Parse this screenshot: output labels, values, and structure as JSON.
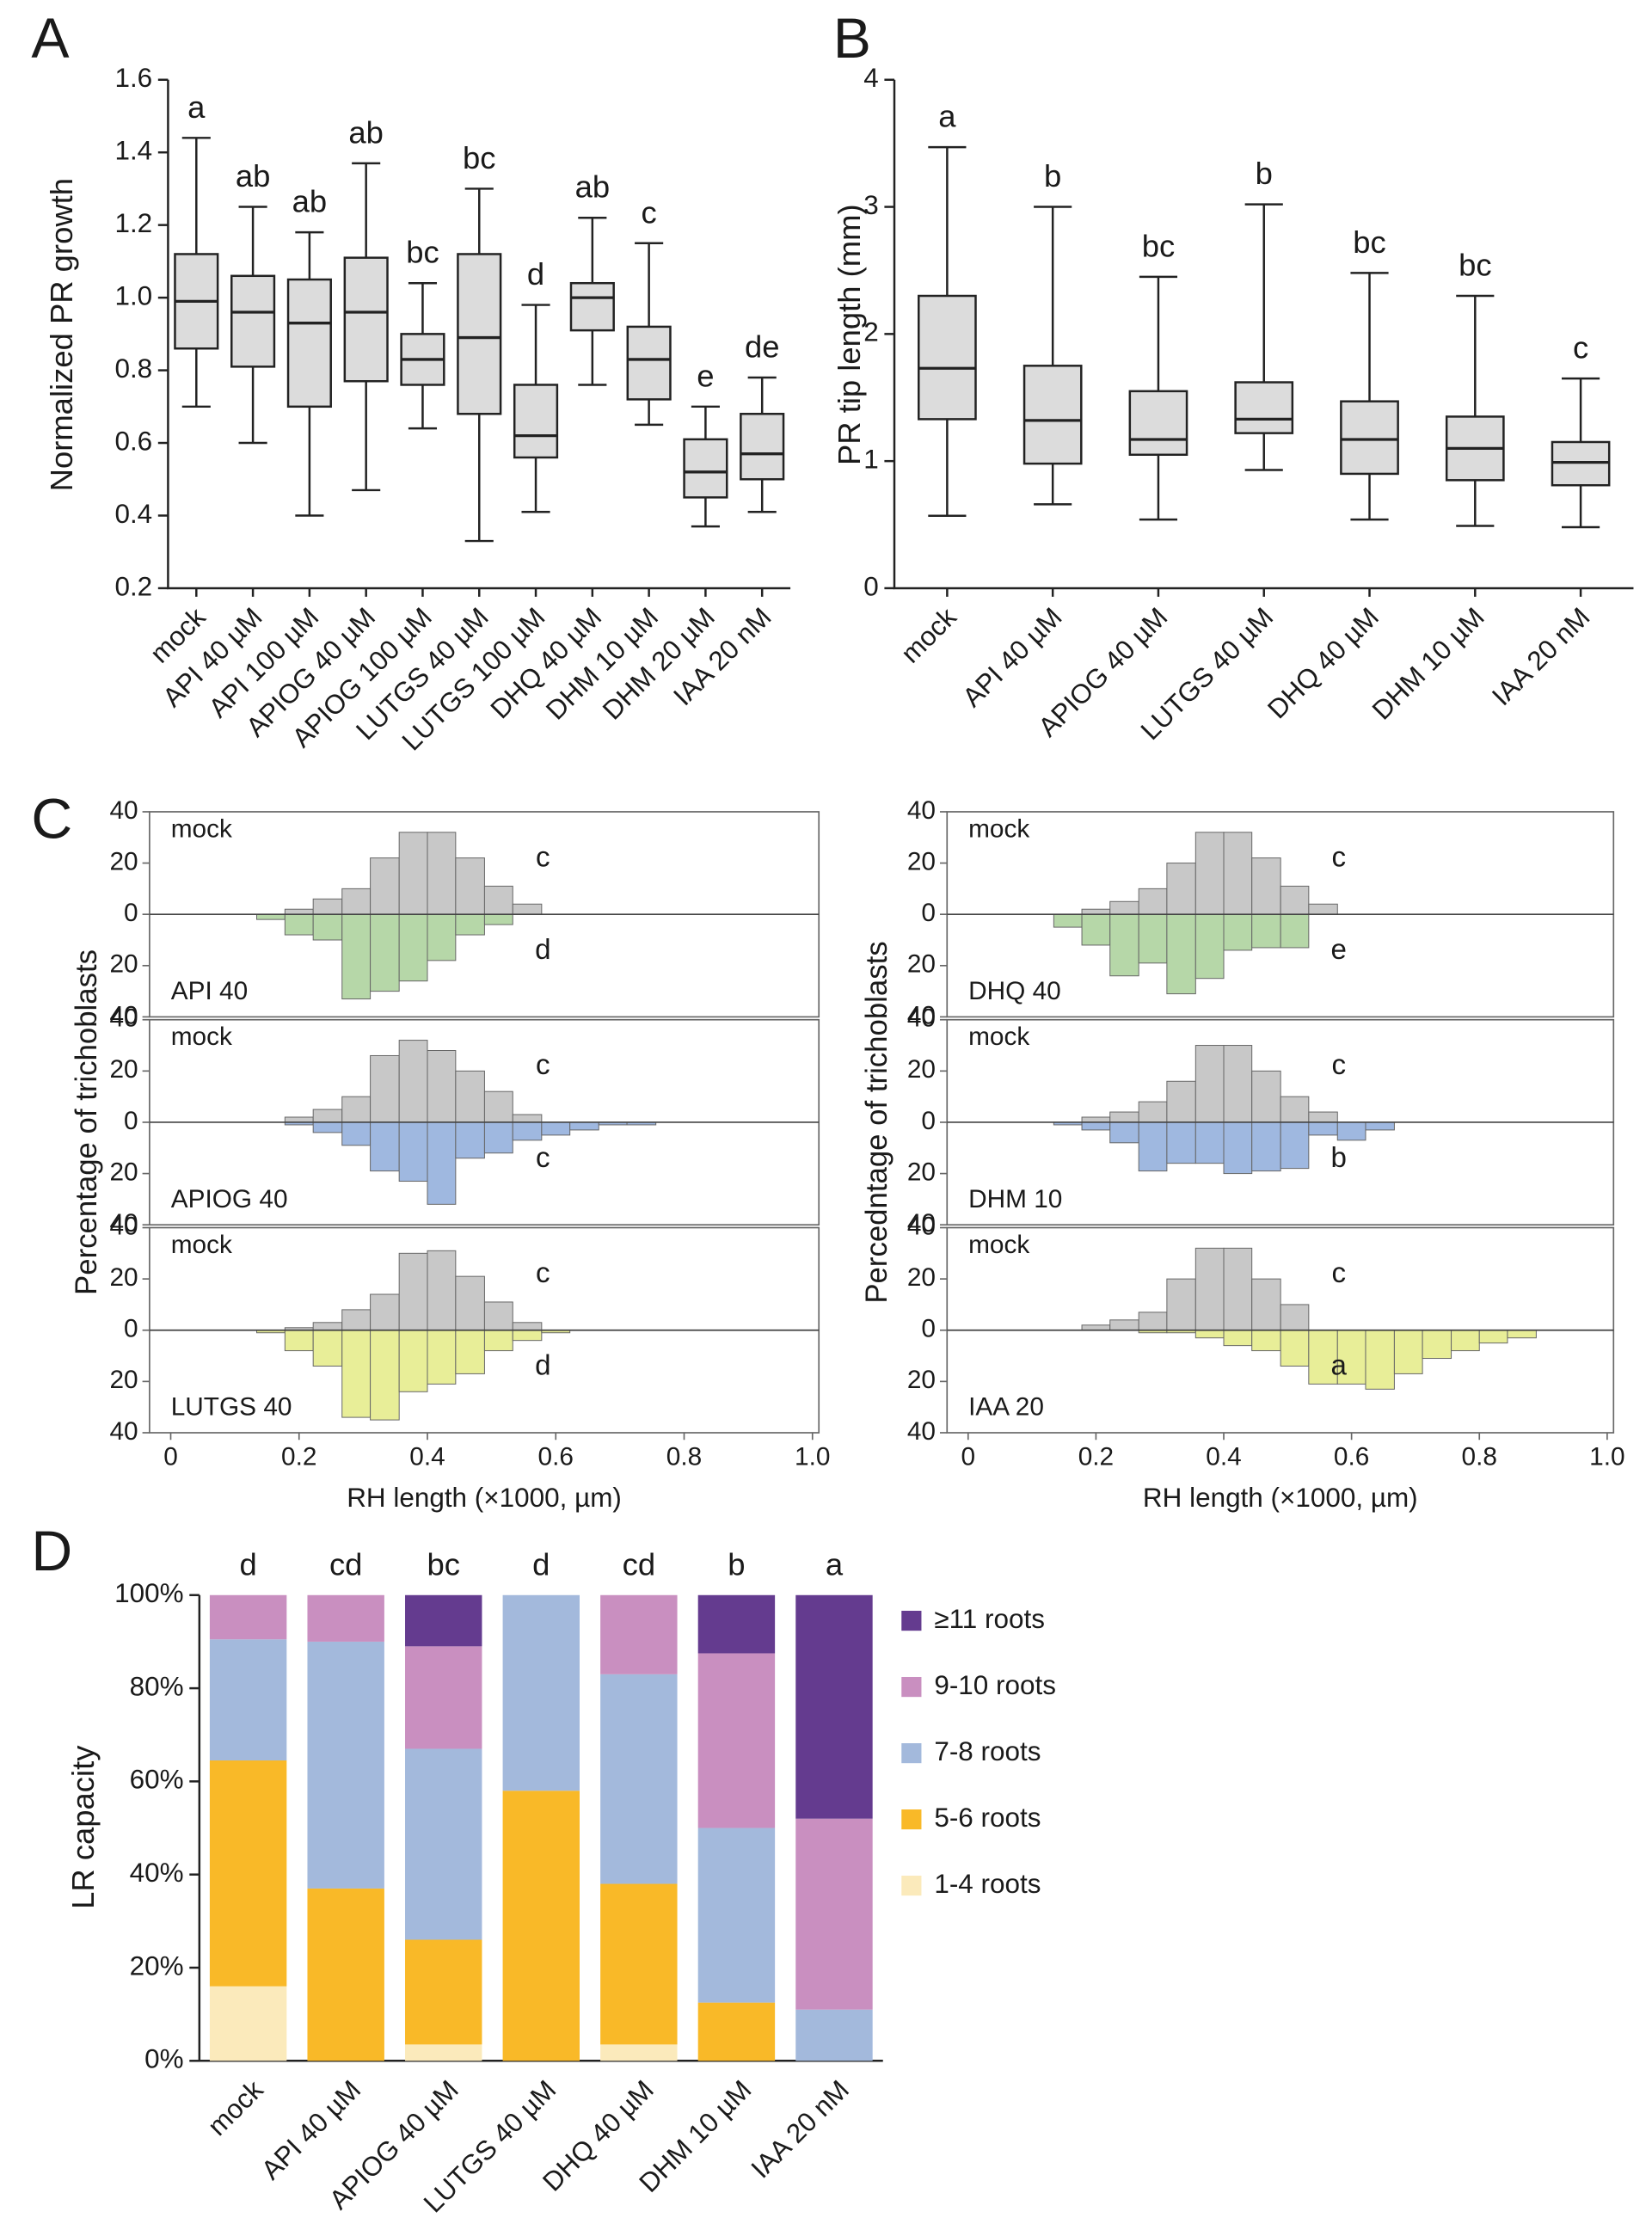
{
  "chart_data": [
    {
      "type": "box",
      "label": "A",
      "ylabel": "Normalized PR growth",
      "categories": [
        "mock",
        "API 40 µM",
        "API 100 µM",
        "APIOG 40 µM",
        "APIOG 100 µM",
        "LUTGS 40 µM",
        "LUTGS 100 µM",
        "DHQ 40 µM",
        "DHM 10 µM",
        "DHM 20 µM",
        "IAA 20 nM"
      ],
      "min": [
        0.7,
        0.6,
        0.4,
        0.47,
        0.64,
        0.33,
        0.41,
        0.76,
        0.65,
        0.37,
        0.41
      ],
      "q1": [
        0.86,
        0.81,
        0.7,
        0.77,
        0.76,
        0.68,
        0.56,
        0.91,
        0.72,
        0.45,
        0.5
      ],
      "median": [
        0.99,
        0.96,
        0.93,
        0.96,
        0.83,
        0.89,
        0.62,
        1.0,
        0.83,
        0.52,
        0.57
      ],
      "q3": [
        1.12,
        1.06,
        1.05,
        1.11,
        0.9,
        1.12,
        0.76,
        1.04,
        0.92,
        0.61,
        0.68
      ],
      "max": [
        1.44,
        1.25,
        1.18,
        1.37,
        1.04,
        1.3,
        0.98,
        1.22,
        1.15,
        0.7,
        0.78
      ],
      "letters": [
        "a",
        "ab",
        "ab",
        "ab",
        "bc",
        "bc",
        "d",
        "ab",
        "c",
        "e",
        "de"
      ],
      "color": "#dcdcdc",
      "ylim": [
        0.2,
        1.6
      ],
      "yticks": [
        0.2,
        0.4,
        0.6,
        0.8,
        {
          "value": 1,
          "label": "1.0"
        },
        1.2,
        1.4,
        1.6
      ]
    },
    {
      "type": "box",
      "label": "B",
      "ylabel": "PR tip length (mm)",
      "categories": [
        "mock",
        "API 40 µM",
        "APIOG 40 µM",
        "LUTGS 40 µM",
        "DHQ 40 µM",
        "DHM 10 µM",
        "IAA 20 nM"
      ],
      "min": [
        0.57,
        0.66,
        0.54,
        0.93,
        0.54,
        0.49,
        0.48
      ],
      "q1": [
        1.33,
        0.98,
        1.05,
        1.22,
        0.9,
        0.85,
        0.81
      ],
      "median": [
        1.73,
        1.32,
        1.17,
        1.33,
        1.17,
        1.1,
        0.99
      ],
      "q3": [
        2.3,
        1.75,
        1.55,
        1.62,
        1.47,
        1.35,
        1.15
      ],
      "max": [
        3.47,
        3.0,
        2.45,
        3.02,
        2.48,
        2.3,
        1.65
      ],
      "letters": [
        "a",
        "b",
        "bc",
        "b",
        "bc",
        "bc",
        "c"
      ],
      "color": "#dcdcdc",
      "ylim": [
        0,
        4
      ],
      "yticks": [
        0,
        1,
        2,
        3,
        4
      ]
    },
    {
      "type": "histogram",
      "label": "C",
      "xlabel": "RH length (×1000, µm)",
      "ylabel_left": "Percentage of trichoblasts",
      "ylabel_right": "Percedntage of trichoblasts",
      "bins": [
        0.134,
        0.178,
        0.222,
        0.267,
        0.311,
        0.356,
        0.4,
        0.444,
        0.489,
        0.533,
        0.578,
        0.622,
        0.667,
        0.711,
        0.756,
        0.8,
        0.844,
        0.889,
        0.933
      ],
      "xlim": [
        -0.033,
        1.01
      ],
      "xticks": [
        0,
        0.2,
        0.4,
        0.6,
        0.8,
        {
          "value": 1,
          "label": "1.0"
        }
      ],
      "ylim": [
        -40,
        40
      ],
      "yticks": [
        {
          "value": -40,
          "label": "40"
        },
        {
          "value": -20,
          "label": "20"
        },
        0,
        20,
        40
      ],
      "subplots": [
        {
          "series": [
            {
              "name": "mock",
              "color": "#c8c8c8",
              "values": [
                0,
                2,
                6,
                10,
                22,
                32,
                32,
                22,
                11,
                4,
                0,
                0,
                0,
                0,
                0,
                0,
                0,
                0
              ]
            },
            {
              "name": "API 40",
              "color": "#b6d7a8",
              "values": [
                -2,
                -8,
                -10,
                -33,
                -30,
                -26,
                -18,
                -8,
                -4,
                0,
                0,
                0,
                0,
                0,
                0,
                0,
                0,
                0
              ]
            }
          ],
          "letters": [
            "c",
            "d"
          ]
        },
        {
          "series": [
            {
              "name": "mock",
              "color": "#c8c8c8",
              "values": [
                0,
                2,
                5,
                10,
                26,
                32,
                28,
                20,
                12,
                3,
                0,
                0,
                0,
                0,
                0,
                0,
                0,
                0
              ]
            },
            {
              "name": "APIOG 40",
              "color": "#9fb8e0",
              "values": [
                0,
                -1,
                -4,
                -9,
                -19,
                -23,
                -32,
                -14,
                -12,
                -7,
                -5,
                -3,
                -1,
                -1,
                0,
                0,
                0,
                0
              ]
            }
          ],
          "letters": [
            "c",
            "c"
          ]
        },
        {
          "series": [
            {
              "name": "mock",
              "color": "#c8c8c8",
              "values": [
                0,
                1,
                3,
                8,
                14,
                30,
                31,
                21,
                11,
                3,
                0,
                0,
                0,
                0,
                0,
                0,
                0,
                0
              ]
            },
            {
              "name": "LUTGS 40",
              "color": "#e8ee98",
              "values": [
                -1,
                -8,
                -14,
                -34,
                -35,
                -24,
                -21,
                -17,
                -8,
                -4,
                -1,
                0,
                0,
                0,
                0,
                0,
                0,
                0
              ]
            }
          ],
          "letters": [
            "c",
            "d"
          ]
        },
        {
          "series": [
            {
              "name": "mock",
              "color": "#c8c8c8",
              "values": [
                0,
                2,
                5,
                10,
                20,
                32,
                32,
                22,
                11,
                4,
                0,
                0,
                0,
                0,
                0,
                0,
                0,
                0
              ]
            },
            {
              "name": "DHQ 40",
              "color": "#b6d7a8",
              "values": [
                -5,
                -12,
                -24,
                -19,
                -31,
                -25,
                -14,
                -13,
                -13,
                0,
                0,
                0,
                0,
                0,
                0,
                0,
                0,
                0
              ]
            }
          ],
          "letters": [
            "c",
            "e"
          ]
        },
        {
          "series": [
            {
              "name": "mock",
              "color": "#c8c8c8",
              "values": [
                0,
                2,
                4,
                8,
                16,
                30,
                30,
                20,
                10,
                4,
                0,
                0,
                0,
                0,
                0,
                0,
                0,
                0
              ]
            },
            {
              "name": "DHM 10",
              "color": "#9fb8e0",
              "values": [
                -1,
                -3,
                -8,
                -19,
                -16,
                -16,
                -20,
                -19,
                -18,
                -5,
                -7,
                -3,
                0,
                0,
                0,
                0,
                0,
                0
              ]
            }
          ],
          "letters": [
            "c",
            "b"
          ]
        },
        {
          "series": [
            {
              "name": "mock",
              "color": "#c8c8c8",
              "values": [
                0,
                2,
                4,
                7,
                20,
                32,
                32,
                20,
                10,
                0,
                0,
                0,
                0,
                0,
                0,
                0,
                0,
                0
              ]
            },
            {
              "name": "IAA 20",
              "color": "#e8ee98",
              "values": [
                0,
                0,
                0,
                -1,
                -1,
                -3,
                -6,
                -8,
                -14,
                -21,
                -21,
                -23,
                -17,
                -11,
                -8,
                -5,
                -3,
                0
              ]
            }
          ],
          "letters": [
            "c",
            "a"
          ]
        }
      ]
    },
    {
      "type": "stacked_bar",
      "label": "D",
      "ylabel": "LR capacity",
      "categories": [
        "mock",
        "API 40 µM",
        "APIOG 40 µM",
        "LUTGS 40 µM",
        "DHQ 40 µM",
        "DHM 10 µM",
        "IAA 20 nM"
      ],
      "letters": [
        "d",
        "cd",
        "bc",
        "d",
        "cd",
        "b",
        "a"
      ],
      "series": [
        {
          "name": "1-4 roots",
          "color": "#fbeabb",
          "values": [
            16,
            0,
            3.5,
            0,
            3.5,
            0,
            0
          ]
        },
        {
          "name": "5-6 roots",
          "color": "#f9b928",
          "values": [
            48.5,
            37,
            22.5,
            58,
            34.5,
            12.5,
            0
          ]
        },
        {
          "name": "7-8 roots",
          "color": "#a3b9dc",
          "values": [
            26,
            53,
            41,
            42,
            45,
            37.5,
            11
          ]
        },
        {
          "name": "9-10 roots",
          "color": "#c98fc0",
          "values": [
            9.5,
            10,
            22,
            0,
            17,
            37.5,
            41
          ]
        },
        {
          "name": "≥11 roots",
          "color": "#643b8f",
          "values": [
            0,
            0,
            11,
            0,
            0,
            12.5,
            48
          ]
        }
      ],
      "ylim": [
        0,
        100
      ],
      "yticks": [
        {
          "value": 0,
          "label": "0%"
        },
        {
          "value": 20,
          "label": "20%"
        },
        {
          "value": 40,
          "label": "40%"
        },
        {
          "value": 60,
          "label": "60%"
        },
        {
          "value": 80,
          "label": "80%"
        },
        {
          "value": 100,
          "label": "100%"
        }
      ]
    }
  ]
}
